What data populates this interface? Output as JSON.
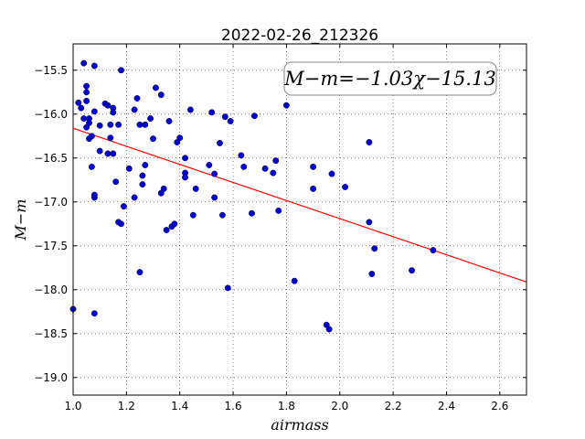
{
  "chart_data": {
    "type": "scatter",
    "title": "2022-02-26_212326",
    "xlabel": "airmass",
    "ylabel": "M−m",
    "xlim": [
      1.0,
      2.7
    ],
    "ylim": [
      -19.2,
      -15.2
    ],
    "y_inverted": true,
    "xticks": [
      "1.0",
      "1.2",
      "1.4",
      "1.6",
      "1.8",
      "2.0",
      "2.2",
      "2.4",
      "2.6"
    ],
    "yticks": [
      "−15.5",
      "−16.0",
      "−16.5",
      "−17.0",
      "−17.5",
      "−18.0",
      "−18.5",
      "−19.0"
    ],
    "grid": true,
    "annotation": "M−m=−1.03χ−15.13",
    "fit": {
      "slope": -1.03,
      "intercept": -15.13,
      "color": "#ff0000"
    },
    "point_color": "#0000cc",
    "points": [
      [
        1.0,
        -18.22
      ],
      [
        1.02,
        -15.87
      ],
      [
        1.03,
        -15.93
      ],
      [
        1.04,
        -15.42
      ],
      [
        1.04,
        -16.05
      ],
      [
        1.05,
        -16.15
      ],
      [
        1.05,
        -15.68
      ],
      [
        1.05,
        -15.75
      ],
      [
        1.05,
        -15.85
      ],
      [
        1.06,
        -16.05
      ],
      [
        1.06,
        -16.28
      ],
      [
        1.06,
        -16.1
      ],
      [
        1.07,
        -16.25
      ],
      [
        1.07,
        -16.6
      ],
      [
        1.08,
        -15.45
      ],
      [
        1.08,
        -15.97
      ],
      [
        1.08,
        -16.95
      ],
      [
        1.08,
        -16.92
      ],
      [
        1.08,
        -18.27
      ],
      [
        1.1,
        -16.13
      ],
      [
        1.1,
        -16.42
      ],
      [
        1.12,
        -15.88
      ],
      [
        1.13,
        -15.9
      ],
      [
        1.13,
        -16.45
      ],
      [
        1.14,
        -16.27
      ],
      [
        1.14,
        -16.12
      ],
      [
        1.15,
        -15.93
      ],
      [
        1.15,
        -15.98
      ],
      [
        1.15,
        -16.45
      ],
      [
        1.16,
        -16.77
      ],
      [
        1.17,
        -16.12
      ],
      [
        1.17,
        -17.23
      ],
      [
        1.18,
        -17.25
      ],
      [
        1.18,
        -15.5
      ],
      [
        1.19,
        -17.05
      ],
      [
        1.21,
        -16.62
      ],
      [
        1.23,
        -15.95
      ],
      [
        1.23,
        -16.95
      ],
      [
        1.24,
        -15.82
      ],
      [
        1.25,
        -16.12
      ],
      [
        1.25,
        -17.8
      ],
      [
        1.26,
        -16.8
      ],
      [
        1.26,
        -16.7
      ],
      [
        1.27,
        -16.58
      ],
      [
        1.27,
        -16.12
      ],
      [
        1.29,
        -16.05
      ],
      [
        1.3,
        -16.28
      ],
      [
        1.31,
        -15.7
      ],
      [
        1.33,
        -15.78
      ],
      [
        1.33,
        -16.9
      ],
      [
        1.34,
        -16.85
      ],
      [
        1.35,
        -17.32
      ],
      [
        1.36,
        -16.08
      ],
      [
        1.37,
        -17.28
      ],
      [
        1.38,
        -17.25
      ],
      [
        1.39,
        -16.32
      ],
      [
        1.4,
        -16.27
      ],
      [
        1.42,
        -16.67
      ],
      [
        1.42,
        -16.72
      ],
      [
        1.42,
        -16.5
      ],
      [
        1.44,
        -15.95
      ],
      [
        1.45,
        -17.15
      ],
      [
        1.46,
        -16.85
      ],
      [
        1.51,
        -16.58
      ],
      [
        1.52,
        -15.98
      ],
      [
        1.53,
        -16.95
      ],
      [
        1.53,
        -16.68
      ],
      [
        1.55,
        -16.33
      ],
      [
        1.56,
        -17.15
      ],
      [
        1.57,
        -16.03
      ],
      [
        1.58,
        -17.98
      ],
      [
        1.59,
        -16.08
      ],
      [
        1.63,
        -16.47
      ],
      [
        1.64,
        -16.6
      ],
      [
        1.67,
        -17.13
      ],
      [
        1.68,
        -16.02
      ],
      [
        1.72,
        -16.62
      ],
      [
        1.75,
        -16.67
      ],
      [
        1.76,
        -16.53
      ],
      [
        1.77,
        -17.1
      ],
      [
        1.8,
        -15.9
      ],
      [
        1.83,
        -17.9
      ],
      [
        1.9,
        -16.6
      ],
      [
        1.9,
        -16.85
      ],
      [
        1.95,
        -18.4
      ],
      [
        1.96,
        -18.45
      ],
      [
        1.97,
        -16.68
      ],
      [
        2.02,
        -16.83
      ],
      [
        2.11,
        -17.23
      ],
      [
        2.11,
        -16.32
      ],
      [
        2.12,
        -17.82
      ],
      [
        2.13,
        -17.53
      ],
      [
        2.27,
        -17.78
      ],
      [
        2.35,
        -17.55
      ]
    ]
  }
}
